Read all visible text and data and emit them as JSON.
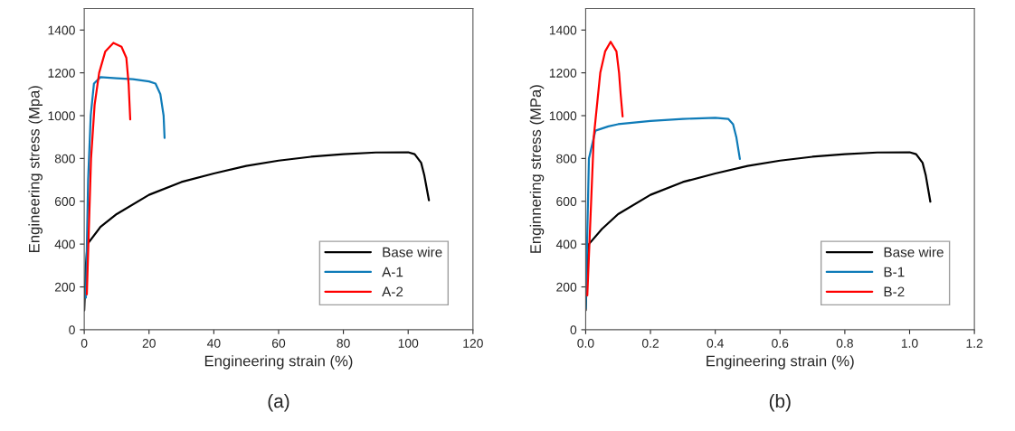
{
  "chart_data": [
    {
      "type": "line",
      "xlabel": "Engineering strain (%)",
      "ylabel": "Engineering stress (Mpa)",
      "xlim": [
        0,
        120
      ],
      "ylim": [
        0,
        1500
      ],
      "xticks": [
        0,
        20,
        40,
        60,
        80,
        100,
        120
      ],
      "yticks": [
        0,
        200,
        400,
        600,
        800,
        1000,
        1200,
        1400
      ],
      "grid": false,
      "legend": "bottom right",
      "annotations": [
        "(a)"
      ],
      "series": [
        {
          "name": "Base wire",
          "color": "#000000",
          "x": [
            0,
            0.5,
            1,
            5,
            10,
            20,
            30,
            40,
            50,
            60,
            70,
            80,
            90,
            100,
            102,
            104,
            105,
            106.4
          ],
          "values": [
            90,
            300,
            400,
            480,
            540,
            630,
            690,
            730,
            765,
            790,
            808,
            820,
            828,
            829,
            820,
            780,
            720,
            605
          ]
        },
        {
          "name": "A-1",
          "color": "#0e7bb8",
          "x": [
            0.5,
            1.2,
            2,
            3,
            5,
            10,
            15,
            20,
            22,
            23.5,
            24.5,
            24.8
          ],
          "values": [
            150,
            700,
            1000,
            1150,
            1180,
            1175,
            1170,
            1160,
            1150,
            1100,
            1000,
            896
          ]
        },
        {
          "name": "A-2",
          "color": "#ff0000",
          "x": [
            0.8,
            2.1,
            3.2,
            4.6,
            6.5,
            9,
            11.5,
            13,
            13.7,
            14.2
          ],
          "values": [
            165,
            800,
            1050,
            1200,
            1300,
            1340,
            1322,
            1270,
            1148,
            982
          ]
        }
      ]
    },
    {
      "type": "line",
      "xlabel": "Engineering strain (%)",
      "ylabel": "Enginnering stress (MPa)",
      "xlim": [
        0,
        1.2
      ],
      "ylim": [
        0,
        1500
      ],
      "xticks": [
        {
          "value": 0,
          "label": "0.0"
        },
        0.2,
        0.4,
        0.6,
        0.8,
        {
          "value": 1,
          "label": "1.0"
        },
        1.2
      ],
      "yticks": [
        0,
        200,
        400,
        600,
        800,
        1000,
        1200,
        1400
      ],
      "grid": false,
      "legend": "bottom right",
      "annotations": [
        "(b)"
      ],
      "series": [
        {
          "name": "Base wire",
          "color": "#000000",
          "x": [
            0,
            0.005,
            0.01,
            0.05,
            0.1,
            0.2,
            0.3,
            0.4,
            0.5,
            0.6,
            0.7,
            0.8,
            0.9,
            1.0,
            1.02,
            1.04,
            1.05,
            1.064
          ],
          "values": [
            90,
            300,
            400,
            470,
            540,
            630,
            690,
            730,
            765,
            790,
            808,
            820,
            828,
            829,
            820,
            780,
            720,
            598
          ]
        },
        {
          "name": "B-1",
          "color": "#0e7bb8",
          "x": [
            0,
            0.01,
            0.03,
            0.07,
            0.1,
            0.2,
            0.3,
            0.4,
            0.44,
            0.455,
            0.465,
            0.476
          ],
          "values": [
            100,
            800,
            930,
            950,
            960,
            975,
            985,
            990,
            985,
            960,
            900,
            798
          ]
        },
        {
          "name": "B-2",
          "color": "#ff0000",
          "x": [
            0.005,
            0.025,
            0.045,
            0.06,
            0.077,
            0.095,
            0.103,
            0.108,
            0.114
          ],
          "values": [
            160,
            900,
            1200,
            1300,
            1345,
            1300,
            1200,
            1100,
            996
          ]
        }
      ]
    }
  ]
}
